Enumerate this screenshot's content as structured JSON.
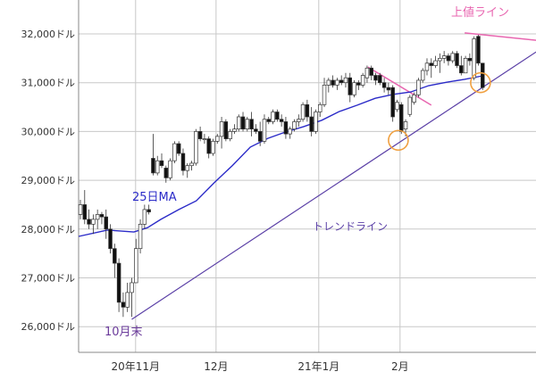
{
  "chart_data": {
    "type": "candlestick",
    "title": "",
    "yticks": [
      26000,
      27000,
      28000,
      29000,
      30000,
      31000,
      32000
    ],
    "ytick_labels": [
      "26,000ドル",
      "27,000ドル",
      "28,000ドル",
      "29,000ドル",
      "30,000ドル",
      "31,000ドル",
      "32,000ドル"
    ],
    "ylim": [
      25480,
      32700
    ],
    "xticks": [
      {
        "label": "20年11月",
        "index": 12.9
      },
      {
        "label": "12月",
        "index": 31.7
      },
      {
        "label": "21年1月",
        "index": 55.7
      },
      {
        "label": "2月",
        "index": 74.7
      }
    ],
    "grid": true,
    "ohlc": [
      [
        28300,
        28600,
        28200,
        28500
      ],
      [
        28500,
        28800,
        28100,
        28200
      ],
      [
        28200,
        28400,
        28000,
        28100
      ],
      [
        28100,
        28300,
        27900,
        28200
      ],
      [
        28200,
        28400,
        28000,
        28300
      ],
      [
        28300,
        28350,
        28100,
        28250
      ],
      [
        28250,
        28400,
        27800,
        28000
      ],
      [
        28000,
        28100,
        27500,
        27600
      ],
      [
        27600,
        27700,
        27000,
        27300
      ],
      [
        27300,
        27400,
        26300,
        26500
      ],
      [
        26500,
        26700,
        26200,
        26400
      ],
      [
        26400,
        26900,
        26300,
        26700
      ],
      [
        26700,
        27000,
        26200,
        26900
      ],
      [
        26900,
        27800,
        26900,
        27600
      ],
      [
        27600,
        28200,
        27500,
        28100
      ],
      [
        28100,
        28500,
        28000,
        28400
      ],
      [
        28400,
        28500,
        28300,
        28350
      ],
      [
        29450,
        29950,
        29100,
        29150
      ],
      [
        29150,
        29500,
        29100,
        29400
      ],
      [
        29400,
        29550,
        29250,
        29300
      ],
      [
        29250,
        29300,
        28950,
        29050
      ],
      [
        29050,
        29450,
        29000,
        29400
      ],
      [
        29400,
        29800,
        29350,
        29750
      ],
      [
        29750,
        29800,
        29500,
        29550
      ],
      [
        29550,
        29650,
        29100,
        29200
      ],
      [
        29200,
        29350,
        29050,
        29300
      ],
      [
        29300,
        29400,
        29200,
        29350
      ],
      [
        29350,
        30050,
        29300,
        30000
      ],
      [
        30000,
        30100,
        29800,
        29850
      ],
      [
        29850,
        29950,
        29750,
        29850
      ],
      [
        29850,
        29900,
        29450,
        29550
      ],
      [
        29550,
        29850,
        29500,
        29800
      ],
      [
        29800,
        29950,
        29750,
        29900
      ],
      [
        29900,
        30300,
        29650,
        30200
      ],
      [
        30200,
        30250,
        29800,
        29850
      ],
      [
        29850,
        30050,
        29800,
        30000
      ],
      [
        30000,
        30150,
        29950,
        30050
      ],
      [
        30050,
        30350,
        30000,
        30300
      ],
      [
        30300,
        30400,
        30000,
        30050
      ],
      [
        30050,
        30300,
        30000,
        30250
      ],
      [
        30250,
        30400,
        29900,
        30050
      ],
      [
        30050,
        30150,
        29950,
        30000
      ],
      [
        30000,
        30200,
        29700,
        29800
      ],
      [
        29800,
        30350,
        29750,
        30250
      ],
      [
        30250,
        30300,
        30150,
        30200
      ],
      [
        30200,
        30450,
        30150,
        30400
      ],
      [
        30400,
        30450,
        30200,
        30250
      ],
      [
        30250,
        30350,
        30100,
        30200
      ],
      [
        30200,
        30300,
        29850,
        29950
      ],
      [
        29950,
        30100,
        29850,
        30050
      ],
      [
        30050,
        30250,
        30000,
        30200
      ],
      [
        30200,
        30350,
        30100,
        30250
      ],
      [
        30250,
        30600,
        30200,
        30550
      ],
      [
        30550,
        30650,
        30200,
        30300
      ],
      [
        30300,
        30500,
        29900,
        30000
      ],
      [
        30000,
        30450,
        29950,
        30400
      ],
      [
        30400,
        30600,
        30300,
        30550
      ],
      [
        30550,
        31100,
        30500,
        30950
      ],
      [
        30950,
        31100,
        30800,
        31050
      ],
      [
        31050,
        31150,
        30900,
        30950
      ],
      [
        30950,
        31100,
        30850,
        31050
      ],
      [
        31050,
        31150,
        30950,
        31000
      ],
      [
        31000,
        31200,
        30900,
        31100
      ],
      [
        31100,
        31200,
        30600,
        30750
      ],
      [
        30750,
        31050,
        30700,
        31000
      ],
      [
        31000,
        31050,
        30850,
        30950
      ],
      [
        30950,
        31200,
        30900,
        31150
      ],
      [
        31100,
        31350,
        31000,
        31300
      ],
      [
        31300,
        31350,
        31050,
        31150
      ],
      [
        31150,
        31200,
        30950,
        31050
      ],
      [
        31150,
        31200,
        30950,
        31000
      ],
      [
        31000,
        31100,
        30800,
        30900
      ],
      [
        30900,
        31000,
        30750,
        30850
      ],
      [
        30900,
        30950,
        30200,
        30300
      ],
      [
        30450,
        30650,
        30400,
        30600
      ],
      [
        30550,
        30600,
        29950,
        30000
      ],
      [
        30050,
        30250,
        29900,
        30200
      ],
      [
        30350,
        30750,
        30300,
        30700
      ],
      [
        30600,
        30800,
        30550,
        30750
      ],
      [
        30750,
        31100,
        30700,
        31050
      ],
      [
        31050,
        31300,
        31000,
        31250
      ],
      [
        31250,
        31500,
        31150,
        31400
      ],
      [
        31400,
        31500,
        31100,
        31350
      ],
      [
        31350,
        31550,
        31300,
        31450
      ],
      [
        31450,
        31600,
        31200,
        31500
      ],
      [
        31500,
        31650,
        31400,
        31550
      ],
      [
        31550,
        31600,
        31350,
        31450
      ],
      [
        31450,
        31650,
        31400,
        31600
      ],
      [
        31600,
        31650,
        31300,
        31350
      ],
      [
        31350,
        31550,
        31150,
        31200
      ],
      [
        31200,
        31550,
        31200,
        31500
      ],
      [
        31500,
        31600,
        31350,
        31450
      ],
      [
        31100,
        31950,
        31050,
        31900
      ],
      [
        31950,
        31980,
        31350,
        31400
      ],
      [
        31400,
        31400,
        30850,
        30900
      ]
    ],
    "ma25": {
      "label": "25日MA",
      "color": "#2b2bc8",
      "points": [
        [
          -0.4,
          27850
        ],
        [
          6.3,
          27980
        ],
        [
          12.5,
          27940
        ],
        [
          15.7,
          28030
        ],
        [
          18.8,
          28200
        ],
        [
          23,
          28400
        ],
        [
          27.1,
          28580
        ],
        [
          31.3,
          28950
        ],
        [
          35.5,
          29300
        ],
        [
          39.7,
          29680
        ],
        [
          43.8,
          29860
        ],
        [
          48,
          29990
        ],
        [
          52.2,
          30100
        ],
        [
          56.4,
          30230
        ],
        [
          60.5,
          30410
        ],
        [
          64.7,
          30540
        ],
        [
          68.9,
          30680
        ],
        [
          73.1,
          30760
        ],
        [
          77.2,
          30810
        ],
        [
          81.4,
          30940
        ],
        [
          85.6,
          31010
        ],
        [
          89.8,
          31070
        ],
        [
          94,
          31140
        ]
      ]
    },
    "annotations": {
      "trend_line": {
        "label": "トレンドライン",
        "color": "#5a3fa6",
        "from": [
          12,
          26150
        ],
        "to": [
          106.5,
          31630
        ]
      },
      "resistance_line": {
        "label": "上値ライン",
        "color": "#e866b0",
        "from": [
          89.8,
          32020
        ],
        "to": [
          106.5,
          31870
        ]
      },
      "short_resistance": {
        "color": "#e866b0",
        "from": [
          67.2,
          31320
        ],
        "to": [
          82,
          30540
        ]
      },
      "end_of_october": {
        "label": "10月末",
        "color": "#6a3a9a"
      },
      "circles": {
        "color": "#f0a040",
        "points": [
          [
            74.3,
            29820
          ],
          [
            93.5,
            31000
          ]
        ]
      }
    }
  }
}
